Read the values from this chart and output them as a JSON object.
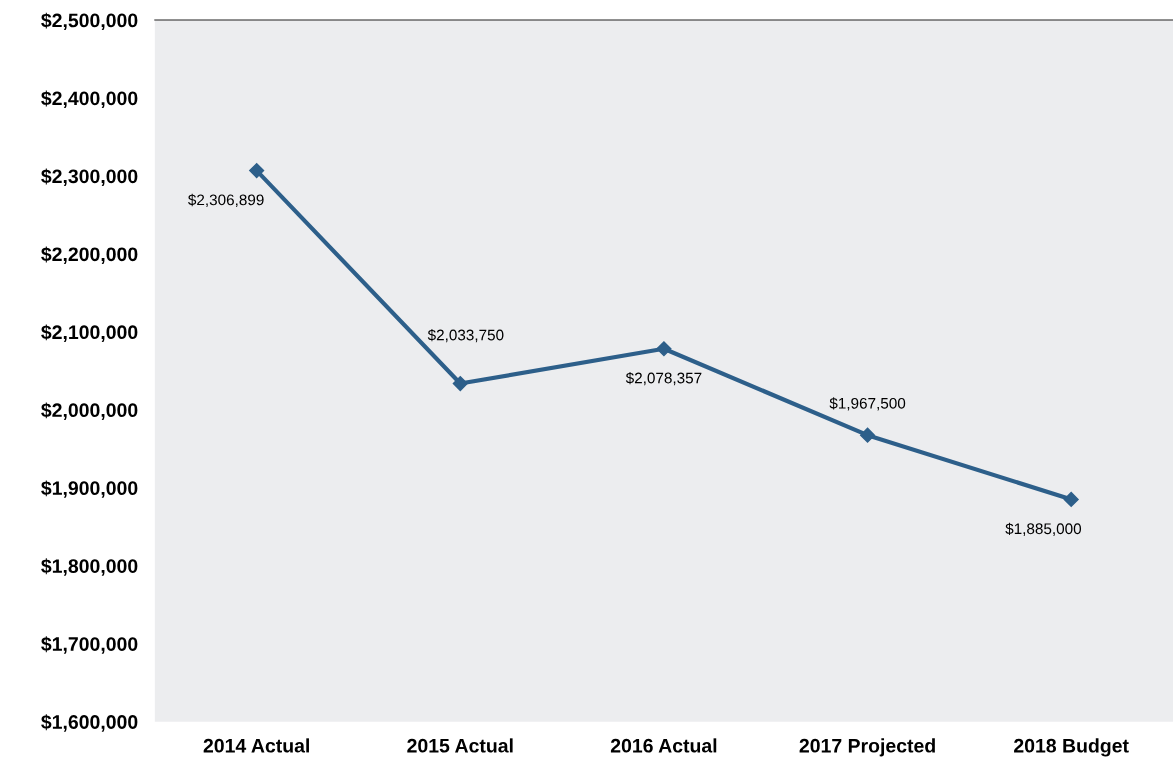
{
  "chart_data": {
    "type": "line",
    "categories": [
      "2014 Actual",
      "2015 Actual",
      "2016 Actual",
      "2017 Projected",
      "2018 Budget"
    ],
    "series": [
      {
        "color": "#2d5f8a",
        "values": [
          2306899,
          2033750,
          2078357,
          1967500,
          1885000
        ],
        "value_labels": [
          "$2,306,899",
          "$2,033,750",
          "$2,078,357",
          "$1,967,500",
          "$1,885,000"
        ]
      }
    ],
    "ylim": [
      1600000,
      2500000
    ],
    "yticks": [
      {
        "value": 1600000,
        "label": "$1,600,000"
      },
      {
        "value": 1700000,
        "label": "$1,700,000"
      },
      {
        "value": 1800000,
        "label": "$1,800,000"
      },
      {
        "value": 1900000,
        "label": "$1,900,000"
      },
      {
        "value": 2000000,
        "label": "$2,000,000"
      },
      {
        "value": 2100000,
        "label": "$2,100,000"
      },
      {
        "value": 2200000,
        "label": "$2,200,000"
      },
      {
        "value": 2300000,
        "label": "$2,300,000"
      },
      {
        "value": 2400000,
        "label": "$2,400,000"
      },
      {
        "value": 2500000,
        "label": "$2,500,000"
      }
    ],
    "marker": "diamond",
    "line_style": "solid",
    "grid": false,
    "legend": false
  }
}
